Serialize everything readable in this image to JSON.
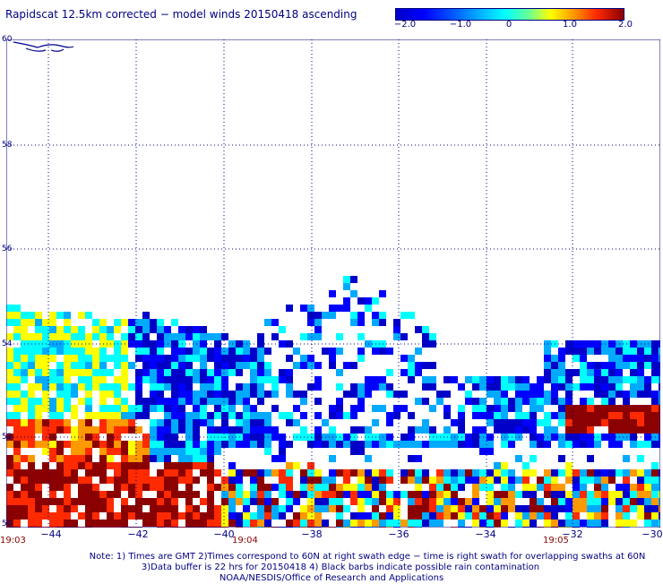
{
  "title": "Rapidscat 12.5km corrected − model winds 20150418 ascending",
  "colorbar": {
    "ticks": [
      "−2.0",
      "−1.0",
      "0",
      "1.0",
      "2.0"
    ],
    "colors": [
      "#0000c8",
      "#0000ff",
      "#00aaff",
      "#00ffff",
      "#ffff00",
      "#ff9900",
      "#ff2a00",
      "#8b0000"
    ]
  },
  "lat_labels": [
    "60",
    "58",
    "56",
    "54",
    "52",
    "50"
  ],
  "lon_labels": [
    "−44",
    "−42",
    "−40",
    "−38",
    "−36",
    "−34",
    "−32",
    "−30"
  ],
  "time_labels": [
    "19:03",
    "19:04",
    "19:05"
  ],
  "notes": [
    "Note: 1) Times are GMT 2)Times correspond to 60N at right swath edge − time is right swath for overlapping swaths at 60N",
    "3)Data buffer is 22 hrs for 20150418 4) Black barbs indicate possible rain contamination",
    "NOAA/NESDIS/Office of Research and Applications"
  ]
}
